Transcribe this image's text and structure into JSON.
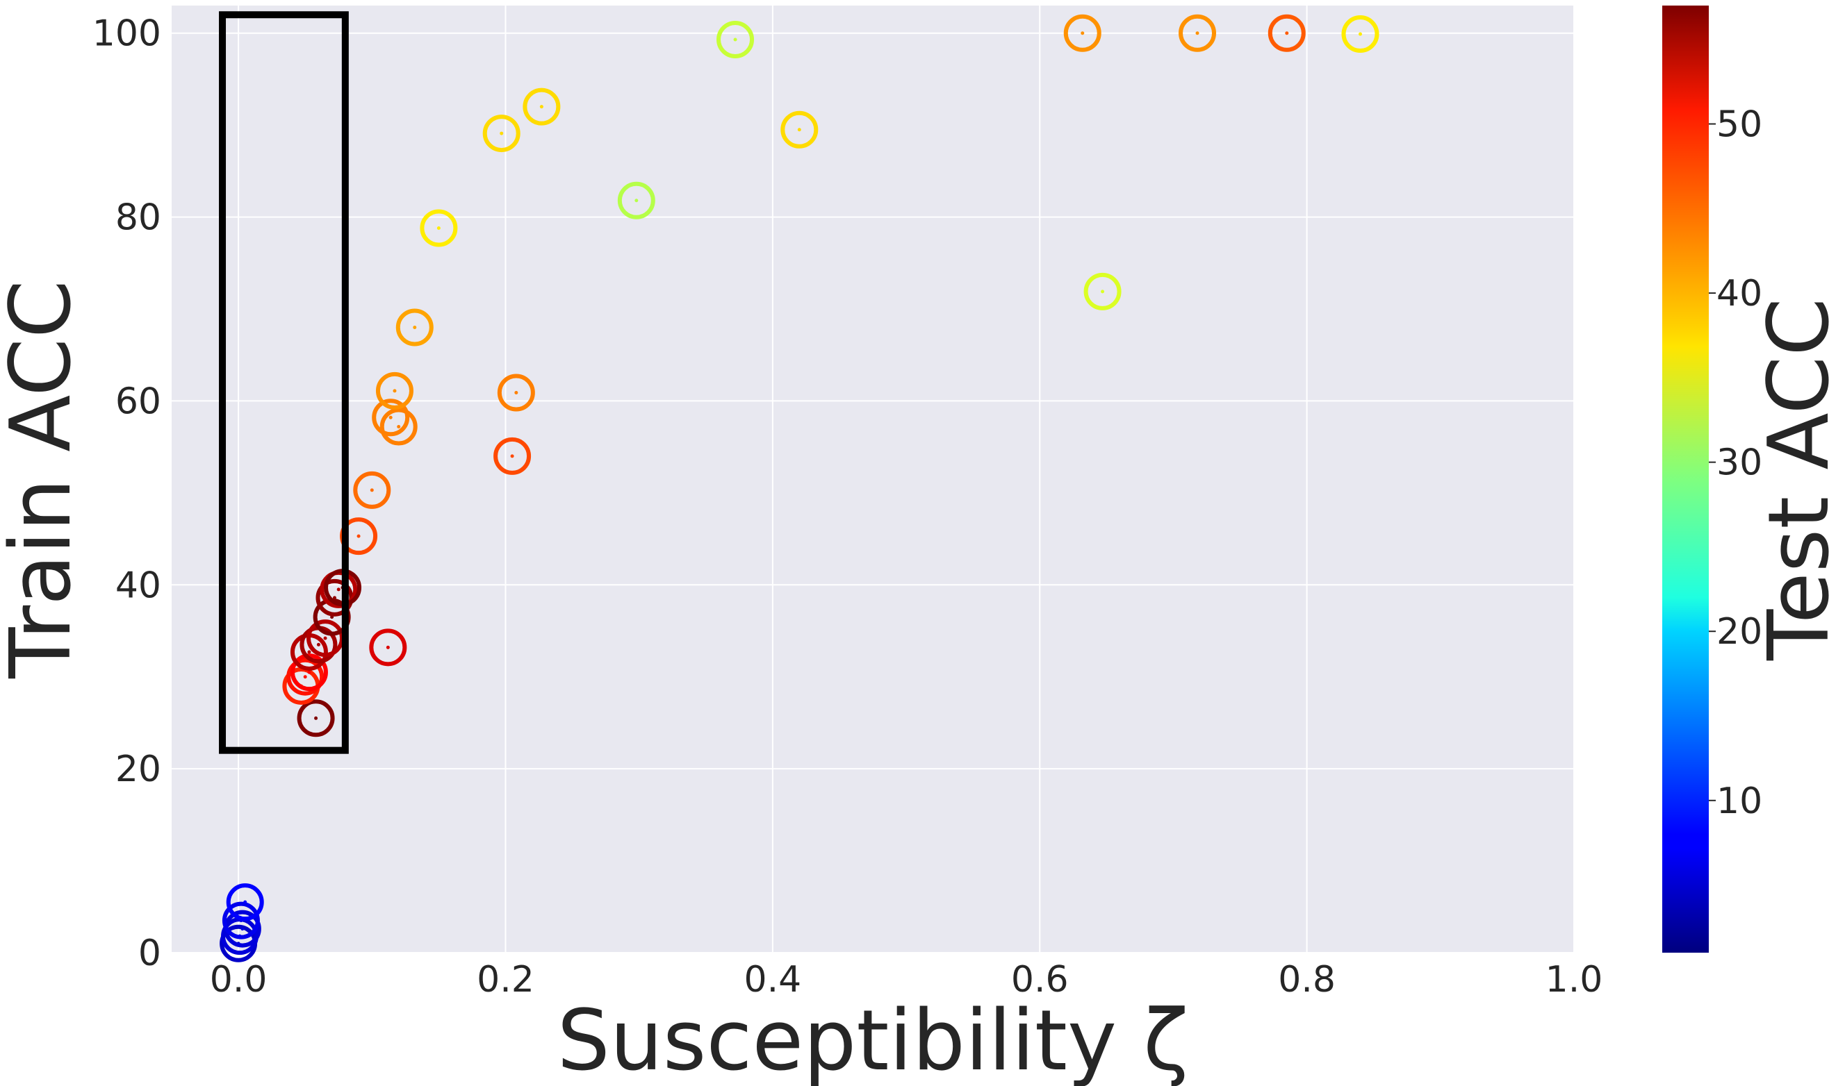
{
  "chart_data": {
    "type": "scatter",
    "title": "",
    "xlabel": "Susceptibility ζ",
    "ylabel": "Train ACC",
    "xlim": [
      -0.05,
      1.0
    ],
    "ylim": [
      0,
      103
    ],
    "x_ticks": [
      "0.0",
      "0.2",
      "0.4",
      "0.6",
      "0.8",
      "1.0"
    ],
    "y_ticks": [
      "0",
      "20",
      "40",
      "60",
      "80",
      "100"
    ],
    "grid": true,
    "background_color": "#e8e8f0",
    "colormap": "jet",
    "colorbar": {
      "label": "Test ACC",
      "range": [
        1,
        57
      ],
      "ticks": [
        "10",
        "20",
        "30",
        "40",
        "50"
      ]
    },
    "marker": "hollow-circle",
    "annotation": {
      "shape": "rectangle",
      "x_range": [
        -0.012,
        0.08
      ],
      "y_range": [
        22,
        102
      ]
    },
    "points": [
      {
        "x": 0.0,
        "y": 1.0,
        "c": 5
      },
      {
        "x": 0.001,
        "y": 1.8,
        "c": 6
      },
      {
        "x": 0.003,
        "y": 2.6,
        "c": 6
      },
      {
        "x": 0.002,
        "y": 3.5,
        "c": 7
      },
      {
        "x": 0.005,
        "y": 5.5,
        "c": 8
      },
      {
        "x": 0.058,
        "y": 25.5,
        "c": 57
      },
      {
        "x": 0.047,
        "y": 29.0,
        "c": 48
      },
      {
        "x": 0.05,
        "y": 30.0,
        "c": 49
      },
      {
        "x": 0.053,
        "y": 30.5,
        "c": 50
      },
      {
        "x": 0.053,
        "y": 32.7,
        "c": 54
      },
      {
        "x": 0.06,
        "y": 33.5,
        "c": 55
      },
      {
        "x": 0.065,
        "y": 34.2,
        "c": 54
      },
      {
        "x": 0.07,
        "y": 36.5,
        "c": 57
      },
      {
        "x": 0.072,
        "y": 38.6,
        "c": 56
      },
      {
        "x": 0.075,
        "y": 39.5,
        "c": 54
      },
      {
        "x": 0.078,
        "y": 39.7,
        "c": 57
      },
      {
        "x": 0.112,
        "y": 33.2,
        "c": 52
      },
      {
        "x": 0.09,
        "y": 45.3,
        "c": 46
      },
      {
        "x": 0.1,
        "y": 50.3,
        "c": 44
      },
      {
        "x": 0.114,
        "y": 58.2,
        "c": 43
      },
      {
        "x": 0.12,
        "y": 57.2,
        "c": 43
      },
      {
        "x": 0.117,
        "y": 61.1,
        "c": 42
      },
      {
        "x": 0.205,
        "y": 54.0,
        "c": 46
      },
      {
        "x": 0.208,
        "y": 60.9,
        "c": 43
      },
      {
        "x": 0.132,
        "y": 68.0,
        "c": 41
      },
      {
        "x": 0.15,
        "y": 78.8,
        "c": 37
      },
      {
        "x": 0.197,
        "y": 89.1,
        "c": 38
      },
      {
        "x": 0.227,
        "y": 92.0,
        "c": 38
      },
      {
        "x": 0.298,
        "y": 81.8,
        "c": 32
      },
      {
        "x": 0.372,
        "y": 99.3,
        "c": 33
      },
      {
        "x": 0.42,
        "y": 89.5,
        "c": 38
      },
      {
        "x": 0.632,
        "y": 100.0,
        "c": 42
      },
      {
        "x": 0.647,
        "y": 71.9,
        "c": 34
      },
      {
        "x": 0.718,
        "y": 100.0,
        "c": 42
      },
      {
        "x": 0.785,
        "y": 100.0,
        "c": 45
      },
      {
        "x": 0.84,
        "y": 99.9,
        "c": 37
      }
    ]
  }
}
